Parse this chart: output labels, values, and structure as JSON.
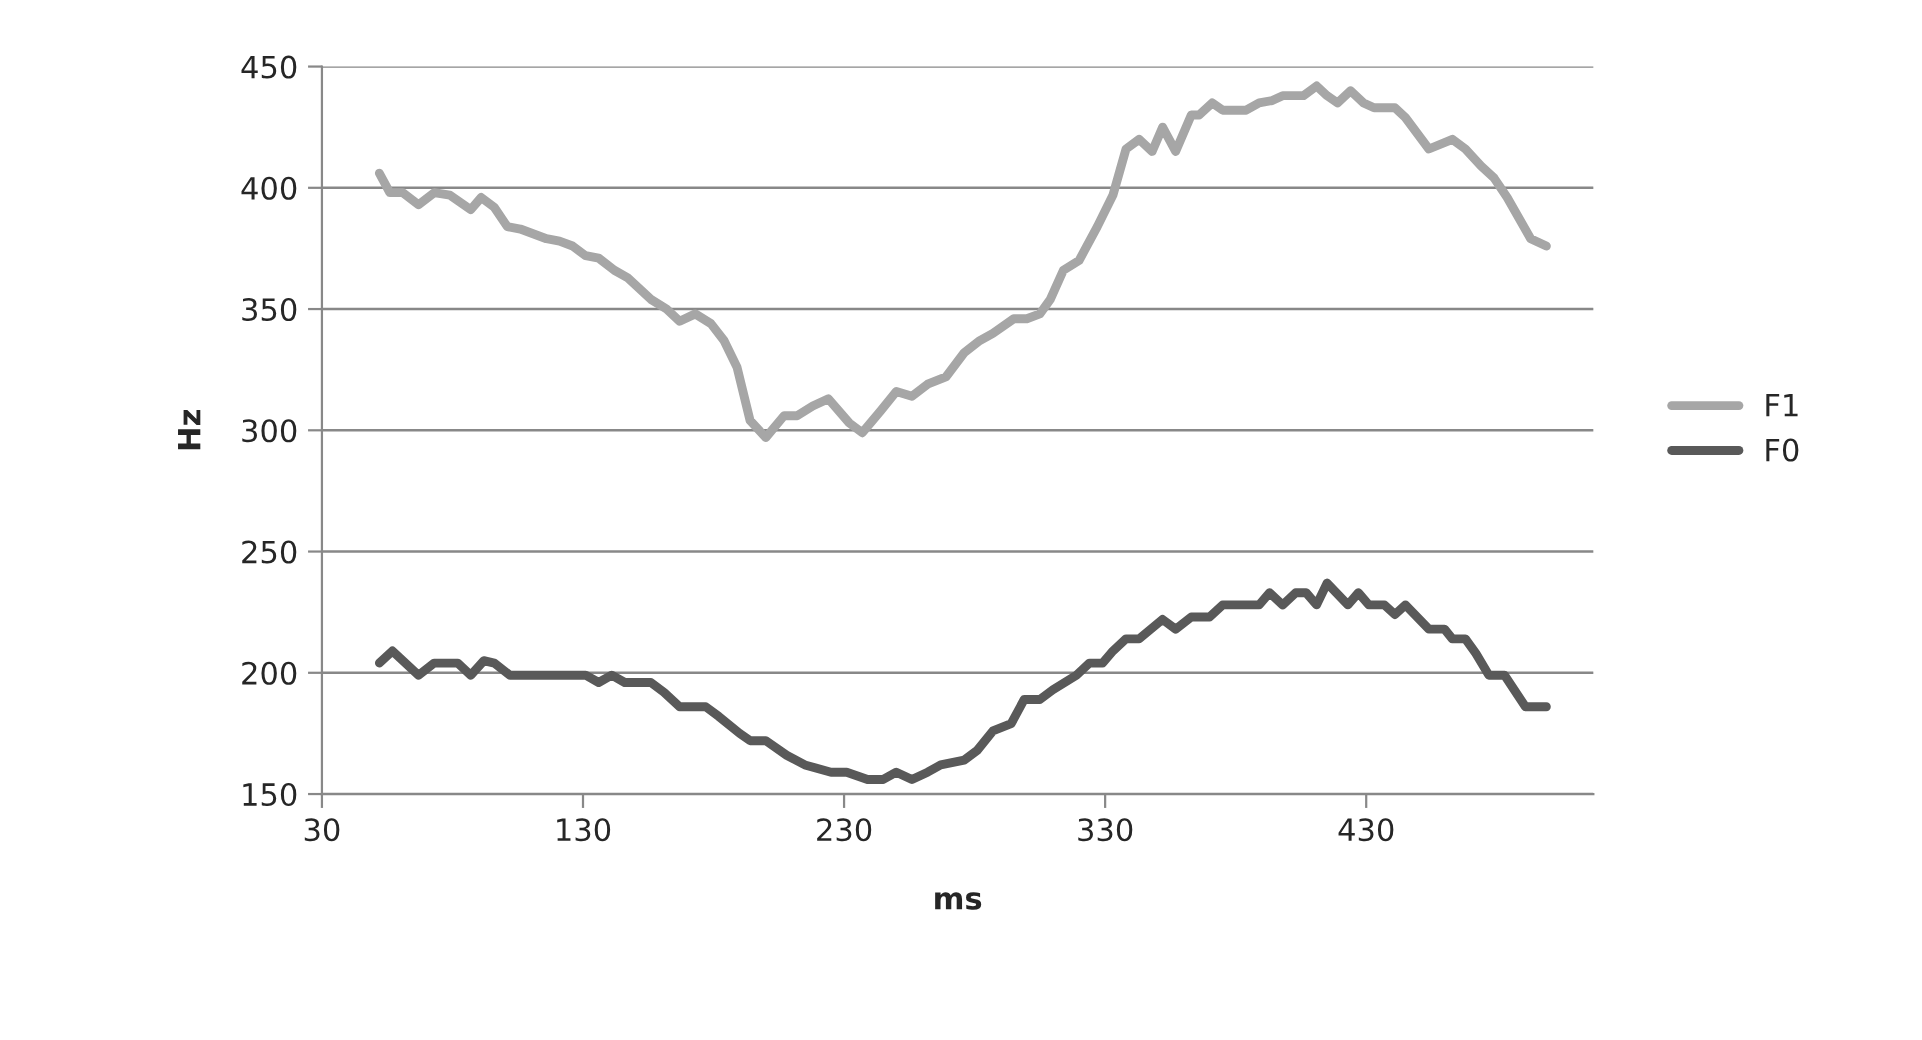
{
  "chart_data": {
    "type": "line",
    "xlabel": "ms",
    "ylabel": "Hz",
    "xlim": [
      30,
      517
    ],
    "xticks": [
      30,
      130,
      230,
      330,
      430
    ],
    "ylim": [
      150,
      450
    ],
    "yticks": [
      150,
      200,
      250,
      300,
      350,
      400,
      450
    ],
    "grid": "y",
    "legend": "right",
    "marker": "none",
    "line_style": "solid",
    "series": [
      {
        "name": "F1",
        "color": "#a6a6a6",
        "x": [
          52,
          56,
          61,
          67,
          73,
          79,
          87,
          91,
          96,
          101,
          106,
          116,
          121,
          126,
          131,
          136,
          142,
          147,
          156,
          162,
          167,
          173,
          179,
          184,
          189,
          194,
          200,
          207,
          212,
          218,
          224,
          232,
          237,
          244,
          250,
          256,
          262,
          269,
          276,
          282,
          287,
          295,
          300,
          305,
          309,
          314,
          320,
          327,
          333,
          338,
          343,
          348,
          352,
          357,
          363,
          366,
          371,
          375,
          384,
          389,
          394,
          398,
          406,
          411,
          415,
          419,
          424,
          429,
          433,
          441,
          445,
          454,
          463,
          468,
          474,
          479,
          484,
          493,
          499
        ],
        "values": [
          406,
          398,
          398,
          393,
          398,
          397,
          391,
          396,
          392,
          384,
          383,
          379,
          378,
          376,
          372,
          371,
          366,
          363,
          354,
          350,
          345,
          348,
          344,
          337,
          326,
          304,
          297,
          306,
          306,
          310,
          313,
          303,
          299,
          308,
          316,
          314,
          319,
          322,
          332,
          337,
          340,
          346,
          346,
          348,
          354,
          366,
          370,
          384,
          397,
          416,
          420,
          415,
          425,
          415,
          430,
          430,
          435,
          432,
          432,
          435,
          436,
          438,
          438,
          442,
          438,
          435,
          440,
          435,
          433,
          433,
          429,
          416,
          420,
          416,
          409,
          404,
          396,
          379,
          376
        ]
      },
      {
        "name": "F0",
        "color": "#595959",
        "x": [
          52,
          57,
          67,
          73,
          82,
          87,
          92,
          96,
          102,
          131,
          136,
          141,
          146,
          156,
          161,
          167,
          177,
          182,
          190,
          194,
          200,
          208,
          215,
          225,
          231,
          239,
          245,
          250,
          256,
          262,
          267,
          276,
          281,
          287,
          294,
          299,
          305,
          310,
          319,
          324,
          329,
          333,
          338,
          343,
          352,
          357,
          363,
          370,
          375,
          389,
          393,
          398,
          403,
          407,
          411,
          415,
          423,
          427,
          431,
          437,
          441,
          445,
          454,
          460,
          463,
          468,
          472,
          477,
          483,
          491,
          499
        ],
        "values": [
          204,
          209,
          199,
          204,
          204,
          199,
          205,
          204,
          199,
          199,
          196,
          199,
          196,
          196,
          192,
          186,
          186,
          182,
          175,
          172,
          172,
          166,
          162,
          159,
          159,
          156,
          156,
          159,
          156,
          159,
          162,
          164,
          168,
          176,
          179,
          189,
          189,
          193,
          199,
          204,
          204,
          209,
          214,
          214,
          222,
          218,
          223,
          223,
          228,
          228,
          233,
          228,
          233,
          233,
          228,
          237,
          228,
          233,
          228,
          228,
          224,
          228,
          218,
          218,
          214,
          214,
          208,
          199,
          199,
          186,
          186
        ]
      }
    ]
  }
}
